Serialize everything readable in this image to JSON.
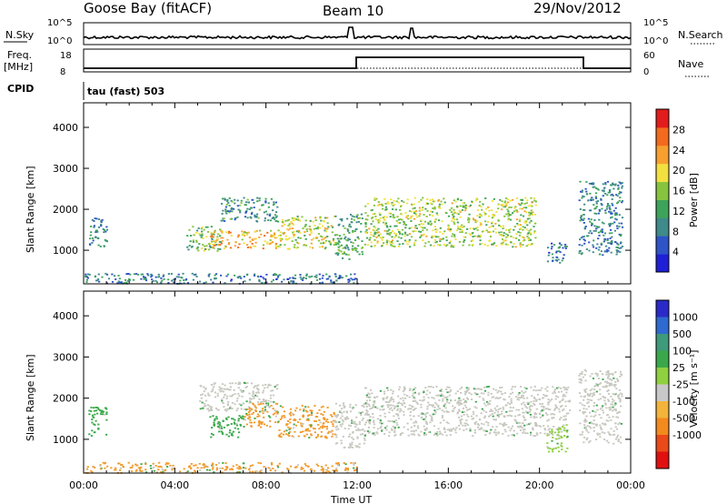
{
  "header": {
    "station": "Goose Bay (fitACF)",
    "beam": "Beam 10",
    "date": "29/Nov/2012"
  },
  "strips": {
    "nsky_label": "N.Sky",
    "nsky_ticks": [
      "10^5",
      "10^0"
    ],
    "nsearch_label": "N.Search",
    "nsearch_ticks": [
      "10^5",
      "10^0"
    ],
    "freq_label": "Freq.",
    "freq_unit": "[MHz]",
    "freq_ticks": [
      18,
      8
    ],
    "nave_label": "Nave",
    "nave_ticks": [
      60,
      0
    ],
    "cpid_label": "CPID",
    "cpid_text": "tau (fast) 503"
  },
  "chart_data": [
    {
      "type": "heatmap",
      "panel": "power",
      "ylabel": "Slant Range [km]",
      "xlabel": "",
      "x_ticks": [
        "00:00",
        "04:00",
        "08:00",
        "12:00",
        "16:00",
        "20:00",
        "00:00"
      ],
      "y_ticks": [
        1000,
        2000,
        3000,
        4000
      ],
      "xlim": [
        0,
        24
      ],
      "ylim": [
        180,
        4600
      ],
      "colorbar": {
        "label": "Power [dB]",
        "ticks": [
          4,
          8,
          12,
          16,
          20,
          24,
          28
        ],
        "range": [
          0,
          32
        ],
        "colors": [
          "#1f1fd6",
          "#2e54c8",
          "#3f8a8a",
          "#3ea35a",
          "#86c440",
          "#f2e040",
          "#f7a030",
          "#f36a1e",
          "#e21c1c"
        ]
      },
      "regions": [
        {
          "t": [
            0.2,
            1.0
          ],
          "r": [
            1100,
            1800
          ],
          "p": 10
        },
        {
          "t": [
            4.5,
            6.0
          ],
          "r": [
            1000,
            1600
          ],
          "p": 14
        },
        {
          "t": [
            5.5,
            8.5
          ],
          "r": [
            1050,
            1500
          ],
          "p": 22
        },
        {
          "t": [
            6.0,
            8.5
          ],
          "r": [
            1700,
            2300
          ],
          "p": 10
        },
        {
          "t": [
            8.5,
            11.0
          ],
          "r": [
            1050,
            1850
          ],
          "p": 18
        },
        {
          "t": [
            11.0,
            12.2
          ],
          "r": [
            800,
            1900
          ],
          "p": 12
        },
        {
          "t": [
            12.3,
            19.8
          ],
          "r": [
            1100,
            2300
          ],
          "p": 17
        },
        {
          "t": [
            20.3,
            21.2
          ],
          "r": [
            700,
            1200
          ],
          "p": 8
        },
        {
          "t": [
            21.7,
            23.6
          ],
          "r": [
            900,
            2700
          ],
          "p": 9
        },
        {
          "t": [
            0.0,
            12.0
          ],
          "r": [
            200,
            450
          ],
          "p": 8
        }
      ]
    },
    {
      "type": "heatmap",
      "panel": "velocity",
      "ylabel": "Slant Range [km]",
      "xlabel": "Time UT",
      "x_ticks": [
        "00:00",
        "04:00",
        "08:00",
        "12:00",
        "16:00",
        "20:00",
        "00:00"
      ],
      "y_ticks": [
        1000,
        2000,
        3000,
        4000
      ],
      "xlim": [
        0,
        24
      ],
      "ylim": [
        180,
        4600
      ],
      "colorbar": {
        "label": "Velocity [m s⁻¹]",
        "ticks": [
          "1000",
          "500",
          "100",
          "25",
          "-25",
          "-100",
          "-500",
          "-1000"
        ],
        "colors": [
          "#2a2ac8",
          "#2e6ad0",
          "#3e9a7a",
          "#3aa84a",
          "#8fd040",
          "#c8c8c8",
          "#f2b43a",
          "#f28a1e",
          "#ea4a1a",
          "#e01010"
        ]
      },
      "regions": [
        {
          "t": [
            0.2,
            1.0
          ],
          "r": [
            1100,
            1800
          ],
          "v": "green"
        },
        {
          "t": [
            5.0,
            8.5
          ],
          "r": [
            1700,
            2400
          ],
          "v": "grey"
        },
        {
          "t": [
            5.5,
            7.0
          ],
          "r": [
            1050,
            1600
          ],
          "v": "green"
        },
        {
          "t": [
            7.0,
            8.5
          ],
          "r": [
            1300,
            1900
          ],
          "v": "orange"
        },
        {
          "t": [
            8.5,
            11.0
          ],
          "r": [
            1050,
            1850
          ],
          "v": "orange"
        },
        {
          "t": [
            11.0,
            12.3
          ],
          "r": [
            800,
            1900
          ],
          "v": "grey"
        },
        {
          "t": [
            12.3,
            21.3
          ],
          "r": [
            1100,
            2300
          ],
          "v": "grey"
        },
        {
          "t": [
            20.3,
            21.2
          ],
          "r": [
            700,
            1400
          ],
          "v": "lightgreen"
        },
        {
          "t": [
            21.7,
            23.6
          ],
          "r": [
            900,
            2700
          ],
          "v": "grey"
        },
        {
          "t": [
            0.0,
            12.0
          ],
          "r": [
            200,
            450
          ],
          "v": "orange"
        }
      ]
    }
  ]
}
